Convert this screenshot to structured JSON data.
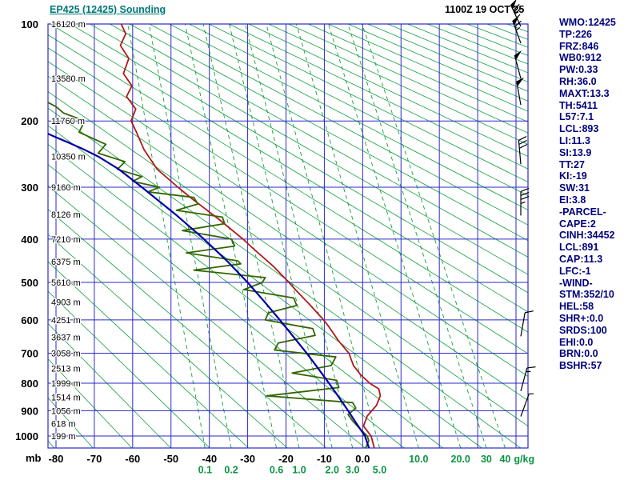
{
  "header": {
    "title": "EP425 (12425) Sounding",
    "datetime": "1100Z 19 OCT 25"
  },
  "colors": {
    "background": "#ffffff",
    "grid_blue": "#2a2ac8",
    "grid_green": "#12a03c",
    "mixing_label_green": "#0d9440",
    "temperature": "#b01818",
    "dewpoint": "#336600",
    "wetbulb": "#0000a8",
    "title_teal": "#007878",
    "panel_navy": "#00007d",
    "axis_text": "#000000"
  },
  "axes": {
    "pressure_unit_label": "mb",
    "pressure_ticks": [
      100,
      200,
      300,
      400,
      500,
      600,
      700,
      800,
      900,
      1000
    ],
    "temp_ticks": [
      {
        "value": -80,
        "label": "-80"
      },
      {
        "value": -70,
        "label": "-70"
      },
      {
        "value": -60,
        "label": "-60"
      },
      {
        "value": -50,
        "label": "-50"
      },
      {
        "value": -40,
        "label": "-40"
      },
      {
        "value": -30,
        "label": "-30"
      },
      {
        "value": -20,
        "label": "-20"
      },
      {
        "value": -10,
        "label": "-10"
      },
      {
        "value": 0,
        "label": "0.0"
      }
    ],
    "mixing_ratio_labels_row1": [
      {
        "value": 10,
        "label": "10.0"
      },
      {
        "value": 20,
        "label": "20.0"
      },
      {
        "value": 30,
        "label": "30"
      },
      {
        "value": 40,
        "label": "40"
      }
    ],
    "mixing_ratio_labels_row2": [
      {
        "value": 0.1,
        "label": "0.1"
      },
      {
        "value": 0.2,
        "label": "0.2"
      },
      {
        "value": 0.6,
        "label": "0.6"
      },
      {
        "value": 1.0,
        "label": "1.0"
      },
      {
        "value": 2.0,
        "label": "2.0"
      },
      {
        "value": 3.0,
        "label": "3.0"
      },
      {
        "value": 5.0,
        "label": "5.0"
      }
    ],
    "mixing_unit_label": "g/kg",
    "height_labels": [
      {
        "pressure": 100,
        "label": "16120 m"
      },
      {
        "pressure": 150,
        "label": "13580 m"
      },
      {
        "pressure": 200,
        "label": "11760 m"
      },
      {
        "pressure": 250,
        "label": "10350 m"
      },
      {
        "pressure": 300,
        "label": "9160 m"
      },
      {
        "pressure": 350,
        "label": "8126 m"
      },
      {
        "pressure": 400,
        "label": "7210 m"
      },
      {
        "pressure": 450,
        "label": "6375 m"
      },
      {
        "pressure": 500,
        "label": "5610 m"
      },
      {
        "pressure": 550,
        "label": "4903 m"
      },
      {
        "pressure": 600,
        "label": "4251 m"
      },
      {
        "pressure": 650,
        "label": "3637 m"
      },
      {
        "pressure": 700,
        "label": "3058 m"
      },
      {
        "pressure": 750,
        "label": "2513 m"
      },
      {
        "pressure": 800,
        "label": "1999 m"
      },
      {
        "pressure": 850,
        "label": "1514 m"
      },
      {
        "pressure": 900,
        "label": "1056 m"
      },
      {
        "pressure": 950,
        "label": "618 m"
      },
      {
        "pressure": 1000,
        "label": "199 m"
      }
    ]
  },
  "chart_data": {
    "type": "line",
    "diagram": "stuve_sounding",
    "title": "EP425 (12425) Sounding",
    "xlabel": "temperature_c",
    "ylabel": "pressure_mb",
    "temp_range_c": [
      -80,
      40
    ],
    "pressure_range_mb": [
      100,
      1050
    ],
    "isotherm_step_c": 10,
    "dry_adiabats_theta_k": {
      "min": 190,
      "max": 610,
      "step": 10
    },
    "mixing_ratio_lines_gkg": [
      0.1,
      0.2,
      0.6,
      1,
      2,
      3,
      5,
      10,
      20,
      30,
      40
    ],
    "series": [
      {
        "name": "temperature",
        "color_key": "temperature",
        "points": [
          [
            1048,
            3.0
          ],
          [
            1000,
            2.2
          ],
          [
            960,
            0.2
          ],
          [
            920,
            1.2
          ],
          [
            880,
            3.6
          ],
          [
            845,
            4.6
          ],
          [
            820,
            4.2
          ],
          [
            800,
            1.8
          ],
          [
            770,
            -0.6
          ],
          [
            740,
            -2.4
          ],
          [
            700,
            -3.6
          ],
          [
            660,
            -6.4
          ],
          [
            620,
            -8.8
          ],
          [
            600,
            -10.2
          ],
          [
            560,
            -13.6
          ],
          [
            520,
            -17.4
          ],
          [
            500,
            -19.2
          ],
          [
            460,
            -23.4
          ],
          [
            420,
            -28.6
          ],
          [
            400,
            -31.2
          ],
          [
            360,
            -37.4
          ],
          [
            320,
            -44.6
          ],
          [
            300,
            -48.2
          ],
          [
            270,
            -53.6
          ],
          [
            240,
            -57.0
          ],
          [
            215,
            -59.0
          ],
          [
            200,
            -60.4
          ],
          [
            185,
            -59.2
          ],
          [
            170,
            -61.6
          ],
          [
            158,
            -60.2
          ],
          [
            145,
            -62.4
          ],
          [
            130,
            -61.0
          ],
          [
            118,
            -63.2
          ],
          [
            108,
            -61.8
          ],
          [
            100,
            -63.0
          ]
        ]
      },
      {
        "name": "dewpoint",
        "color_key": "dewpoint",
        "points": [
          [
            1048,
            0.8
          ],
          [
            1020,
            1.6
          ],
          [
            1000,
            1.2
          ],
          [
            970,
            -0.8
          ],
          [
            940,
            -2.6
          ],
          [
            915,
            -3.8
          ],
          [
            890,
            -1.8
          ],
          [
            870,
            -2.6
          ],
          [
            845,
            -25.0
          ],
          [
            815,
            -6.2
          ],
          [
            790,
            -6.8
          ],
          [
            765,
            -18.4
          ],
          [
            740,
            -8.2
          ],
          [
            712,
            -7.0
          ],
          [
            690,
            -23.0
          ],
          [
            668,
            -22.0
          ],
          [
            645,
            -12.4
          ],
          [
            625,
            -13.0
          ],
          [
            600,
            -25.4
          ],
          [
            580,
            -24.6
          ],
          [
            560,
            -17.2
          ],
          [
            540,
            -18.0
          ],
          [
            518,
            -31.0
          ],
          [
            500,
            -26.2
          ],
          [
            488,
            -25.4
          ],
          [
            470,
            -44.0
          ],
          [
            455,
            -31.8
          ],
          [
            448,
            -32.6
          ],
          [
            430,
            -46.0
          ],
          [
            415,
            -33.4
          ],
          [
            400,
            -34.2
          ],
          [
            382,
            -47.0
          ],
          [
            368,
            -36.0
          ],
          [
            355,
            -36.6
          ],
          [
            342,
            -48.6
          ],
          [
            330,
            -43.0
          ],
          [
            318,
            -44.0
          ],
          [
            308,
            -56.0
          ],
          [
            300,
            -53.0
          ],
          [
            290,
            -60.0
          ],
          [
            282,
            -57.6
          ],
          [
            270,
            -64.0
          ],
          [
            258,
            -62.0
          ],
          [
            245,
            -69.0
          ],
          [
            232,
            -67.0
          ],
          [
            215,
            -74.0
          ],
          [
            200,
            -72.5
          ],
          [
            190,
            -78.0
          ],
          [
            182,
            -80.0
          ],
          [
            176,
            -82.5
          ]
        ]
      },
      {
        "name": "wetbulb",
        "color_key": "wetbulb",
        "points": [
          [
            1048,
            1.6
          ],
          [
            1000,
            0.6
          ],
          [
            950,
            -1.6
          ],
          [
            900,
            -3.8
          ],
          [
            850,
            -6.2
          ],
          [
            800,
            -8.8
          ],
          [
            750,
            -11.6
          ],
          [
            700,
            -14.6
          ],
          [
            650,
            -18.0
          ],
          [
            600,
            -21.6
          ],
          [
            550,
            -25.6
          ],
          [
            500,
            -30.0
          ],
          [
            450,
            -35.2
          ],
          [
            400,
            -41.4
          ],
          [
            350,
            -48.8
          ],
          [
            300,
            -57.6
          ],
          [
            270,
            -63.6
          ],
          [
            250,
            -69.0
          ],
          [
            240,
            -72.5
          ],
          [
            230,
            -76.5
          ],
          [
            222,
            -80.0
          ],
          [
            215,
            -83.0
          ]
        ]
      }
    ],
    "wind_barbs": [
      {
        "pressure": 102,
        "speed": 75,
        "direction": -25
      },
      {
        "pressure": 116,
        "speed": 65,
        "direction": -20
      },
      {
        "pressure": 150,
        "speed": 50,
        "direction": -15
      },
      {
        "pressure": 180,
        "speed": 50,
        "direction": -10
      },
      {
        "pressure": 262,
        "speed": 30,
        "direction": -5
      },
      {
        "pressure": 352,
        "speed": 35,
        "direction": 0
      },
      {
        "pressure": 648,
        "speed": 10,
        "direction": 10
      },
      {
        "pressure": 828,
        "speed": 15,
        "direction": 15
      },
      {
        "pressure": 922,
        "speed": 5,
        "direction": 20
      }
    ]
  },
  "info_panel": {
    "lines": [
      "WMO:12425",
      "TP:226",
      "FRZ:846",
      "WB0:912",
      "PW:0.33",
      "RH:36.0",
      "MAXT:13.3",
      "TH:5411",
      "L57:7.1",
      "LCL:893",
      "LI:11.3",
      "SI:13.9",
      "TT:27",
      "KI:-19",
      "SW:31",
      "EI:3.8",
      "-PARCEL-",
      "CAPE:2",
      "CINH:34452",
      "LCL:891",
      "CAP:11.3",
      "LFC:-1",
      "-WIND-",
      "STM:352/10",
      "HEL:58",
      "SHR+:0.0",
      "SRDS:100",
      "EHI:0.0",
      "BRN:0.0",
      "BSHR:57"
    ]
  }
}
